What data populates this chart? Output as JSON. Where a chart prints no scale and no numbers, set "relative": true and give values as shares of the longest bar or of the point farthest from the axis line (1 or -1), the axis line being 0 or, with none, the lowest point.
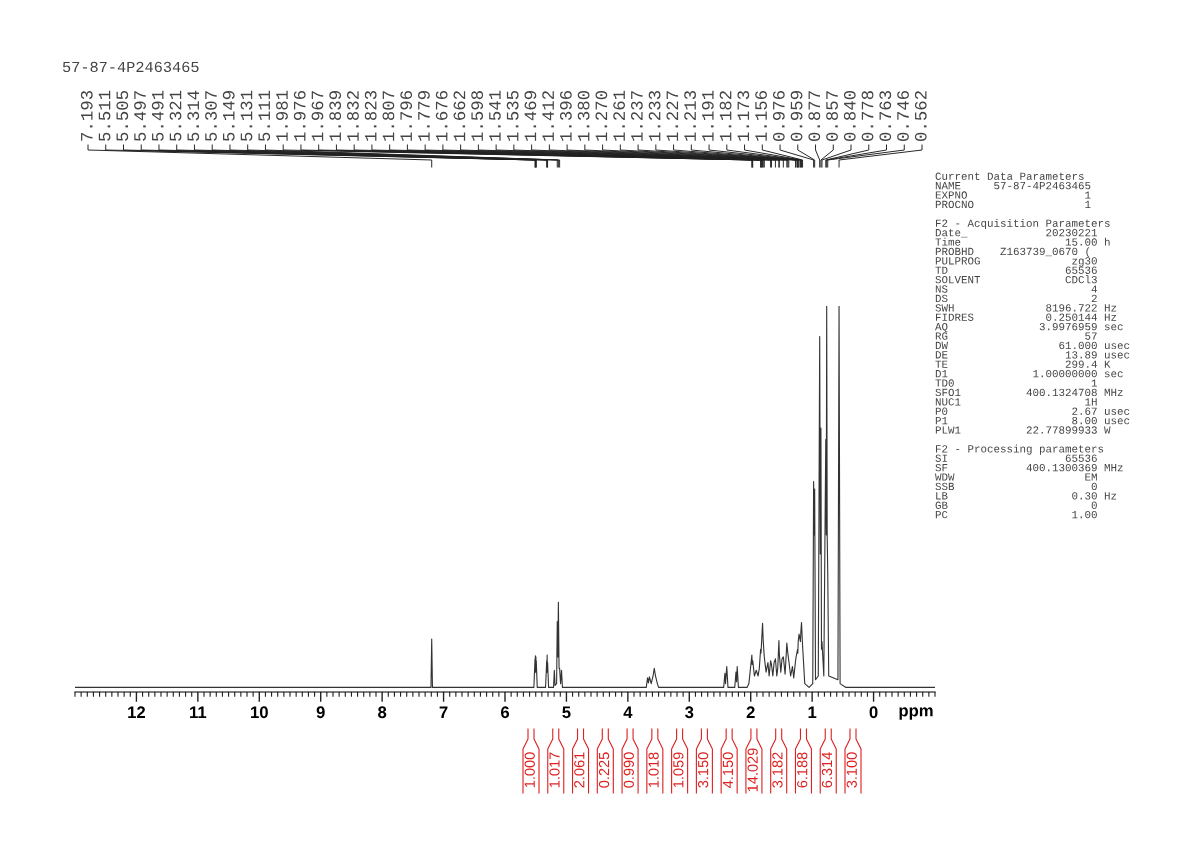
{
  "chart_data": [
    {
      "type": "line",
      "title": "57-87-4P2463465",
      "xlabel": "ppm",
      "relative": true,
      "x": [
        13.0,
        7.205,
        7.193,
        7.181,
        5.53,
        5.511,
        5.508,
        5.505,
        5.501,
        5.497,
        5.494,
        5.491,
        5.475,
        5.34,
        5.321,
        5.317,
        5.314,
        5.31,
        5.307,
        5.29,
        5.21,
        5.197,
        5.185,
        5.16,
        5.149,
        5.14,
        5.131,
        5.12,
        5.111,
        5.095,
        5.08,
        5.065,
        3.7,
        3.68,
        3.665,
        3.65,
        3.62,
        3.59,
        3.57,
        3.55,
        3.52,
        3.5,
        2.44,
        2.42,
        2.41,
        2.39,
        2.37,
        2.26,
        2.24,
        2.23,
        2.22,
        2.2,
        2.06,
        2.03,
        1.981,
        1.976,
        1.967,
        1.94,
        1.91,
        1.88,
        1.86,
        1.839,
        1.832,
        1.823,
        1.807,
        1.796,
        1.779,
        1.75,
        1.72,
        1.7,
        1.676,
        1.662,
        1.64,
        1.62,
        1.598,
        1.575,
        1.56,
        1.541,
        1.535,
        1.51,
        1.49,
        1.469,
        1.44,
        1.412,
        1.396,
        1.38,
        1.35,
        1.32,
        1.3,
        1.27,
        1.261,
        1.237,
        1.233,
        1.227,
        1.213,
        1.191,
        1.182,
        1.173,
        1.156,
        1.12,
        1.05,
        0.99,
        0.976,
        0.967,
        0.959,
        0.945,
        0.9,
        0.877,
        0.867,
        0.857,
        0.848,
        0.84,
        0.81,
        0.778,
        0.77,
        0.763,
        0.755,
        0.746,
        0.73,
        0.58,
        0.562,
        0.545,
        0.45,
        -1.0
      ],
      "series": [
        {
          "color": "#333333",
          "values": [
            0,
            0,
            0.127,
            0,
            0,
            0.075,
            0.04,
            0.083,
            0.04,
            0.08,
            0.04,
            0.07,
            0,
            0,
            0.07,
            0.04,
            0.085,
            0.04,
            0.065,
            0,
            0,
            0.045,
            0.005,
            0.01,
            0.173,
            0.08,
            0.223,
            0.05,
            0.05,
            0.01,
            0.045,
            0,
            0,
            0.025,
            0.012,
            0.028,
            0.01,
            0.03,
            0.05,
            0.03,
            0.01,
            0,
            0,
            0.037,
            0.01,
            0.055,
            0,
            0,
            0.04,
            0.015,
            0.055,
            0,
            0,
            0.01,
            0.085,
            0.06,
            0.07,
            0.03,
            0.045,
            0.03,
            0.05,
            0.1,
            0.09,
            0.12,
            0.168,
            0.12,
            0.08,
            0.04,
            0.065,
            0.03,
            0.07,
            0.06,
            0.03,
            0.065,
            0.075,
            0.03,
            0.05,
            0.123,
            0.09,
            0.04,
            0.075,
            0.08,
            0.035,
            0.116,
            0.09,
            0.07,
            0.03,
            0.055,
            0.025,
            0.07,
            0.08,
            0.1,
            0.09,
            0.12,
            0.14,
            0.12,
            0.15,
            0.17,
            0.11,
            0.01,
            0,
            0.01,
            0.54,
            0.4,
            0.52,
            0.02,
            0.03,
            0.92,
            0.35,
            0.68,
            0.1,
            0.12,
            0.03,
            0.65,
            0.4,
            1.0,
            0.4,
            0.3,
            0.03,
            0.02,
            1.0,
            0.01,
            0,
            0
          ]
        }
      ],
      "xlim": [
        13,
        -1
      ],
      "xticks": [
        12,
        11,
        10,
        9,
        8,
        7,
        6,
        5,
        4,
        3,
        2,
        1,
        0
      ],
      "annotations": [
        {
          "text": "7.193",
          "x": 7.193
        },
        {
          "text": "5.511",
          "x": 5.511
        },
        {
          "text": "5.505",
          "x": 5.505
        },
        {
          "text": "5.497",
          "x": 5.497
        },
        {
          "text": "5.491",
          "x": 5.491
        },
        {
          "text": "5.321",
          "x": 5.321
        },
        {
          "text": "5.314",
          "x": 5.314
        },
        {
          "text": "5.307",
          "x": 5.307
        },
        {
          "text": "5.149",
          "x": 5.149
        },
        {
          "text": "5.131",
          "x": 5.131
        },
        {
          "text": "5.111",
          "x": 5.111
        },
        {
          "text": "1.981",
          "x": 1.981
        },
        {
          "text": "1.976",
          "x": 1.976
        },
        {
          "text": "1.967",
          "x": 1.967
        },
        {
          "text": "1.839",
          "x": 1.839
        },
        {
          "text": "1.832",
          "x": 1.832
        },
        {
          "text": "1.823",
          "x": 1.823
        },
        {
          "text": "1.807",
          "x": 1.807
        },
        {
          "text": "1.796",
          "x": 1.796
        },
        {
          "text": "1.779",
          "x": 1.779
        },
        {
          "text": "1.676",
          "x": 1.676
        },
        {
          "text": "1.662",
          "x": 1.662
        },
        {
          "text": "1.598",
          "x": 1.598
        },
        {
          "text": "1.541",
          "x": 1.541
        },
        {
          "text": "1.535",
          "x": 1.535
        },
        {
          "text": "1.469",
          "x": 1.469
        },
        {
          "text": "1.412",
          "x": 1.412
        },
        {
          "text": "1.396",
          "x": 1.396
        },
        {
          "text": "1.380",
          "x": 1.38
        },
        {
          "text": "1.270",
          "x": 1.27
        },
        {
          "text": "1.261",
          "x": 1.261
        },
        {
          "text": "1.237",
          "x": 1.237
        },
        {
          "text": "1.233",
          "x": 1.233
        },
        {
          "text": "1.227",
          "x": 1.227
        },
        {
          "text": "1.213",
          "x": 1.213
        },
        {
          "text": "1.191",
          "x": 1.191
        },
        {
          "text": "1.182",
          "x": 1.182
        },
        {
          "text": "1.173",
          "x": 1.173
        },
        {
          "text": "1.156",
          "x": 1.156
        },
        {
          "text": "0.976",
          "x": 0.976
        },
        {
          "text": "0.959",
          "x": 0.959
        },
        {
          "text": "0.877",
          "x": 0.877
        },
        {
          "text": "0.857",
          "x": 0.857
        },
        {
          "text": "0.840",
          "x": 0.84
        },
        {
          "text": "0.778",
          "x": 0.778
        },
        {
          "text": "0.763",
          "x": 0.763
        },
        {
          "text": "0.746",
          "x": 0.746
        },
        {
          "text": "0.562",
          "x": 0.562
        },
        "1.000",
        "1.017",
        "2.061",
        "0.225",
        "0.990",
        "1.018",
        "1.059",
        "3.150",
        "4.150",
        "14.029",
        "3.182",
        "6.188",
        "6.314",
        "3.100"
      ]
    },
    {
      "type": "other",
      "title": "Current Data Parameters",
      "annotations": [
        "NAME     57-87-4P2463465",
        "EXPNO                  1",
        "PROCNO                 1"
      ]
    },
    {
      "type": "other",
      "title": "F2 - Acquisition Parameters",
      "annotations": [
        "Date_            20230221",
        "Time                15.00 h",
        "PROBHD    Z163739_0670 (",
        "PULPROG              zg30",
        "TD                  65536",
        "SOLVENT             CDCl3",
        "NS                      4",
        "DS                      2",
        "SWH              8196.722 Hz",
        "FIDRES           0.250144 Hz",
        "AQ              3.9976959 sec",
        "RG                     57",
        "DW                 61.000 usec",
        "DE                  13.89 usec",
        "TE                  299.4 K",
        "D1             1.00000000 sec",
        "TD0                     1",
        "SFO1          400.1324708 MHz",
        "NUC1                   1H",
        "P0                   2.67 usec",
        "P1                   8.00 usec",
        "PLW1          22.77899933 W"
      ]
    },
    {
      "type": "other",
      "title": "F2 - Processing parameters",
      "annotations": [
        "SI                  65536",
        "SF            400.1300369 MHz",
        "WDW                    EM",
        "SSB                     0",
        "LB                   0.30 Hz",
        "GB                      0",
        "PC                   1.00"
      ]
    }
  ]
}
